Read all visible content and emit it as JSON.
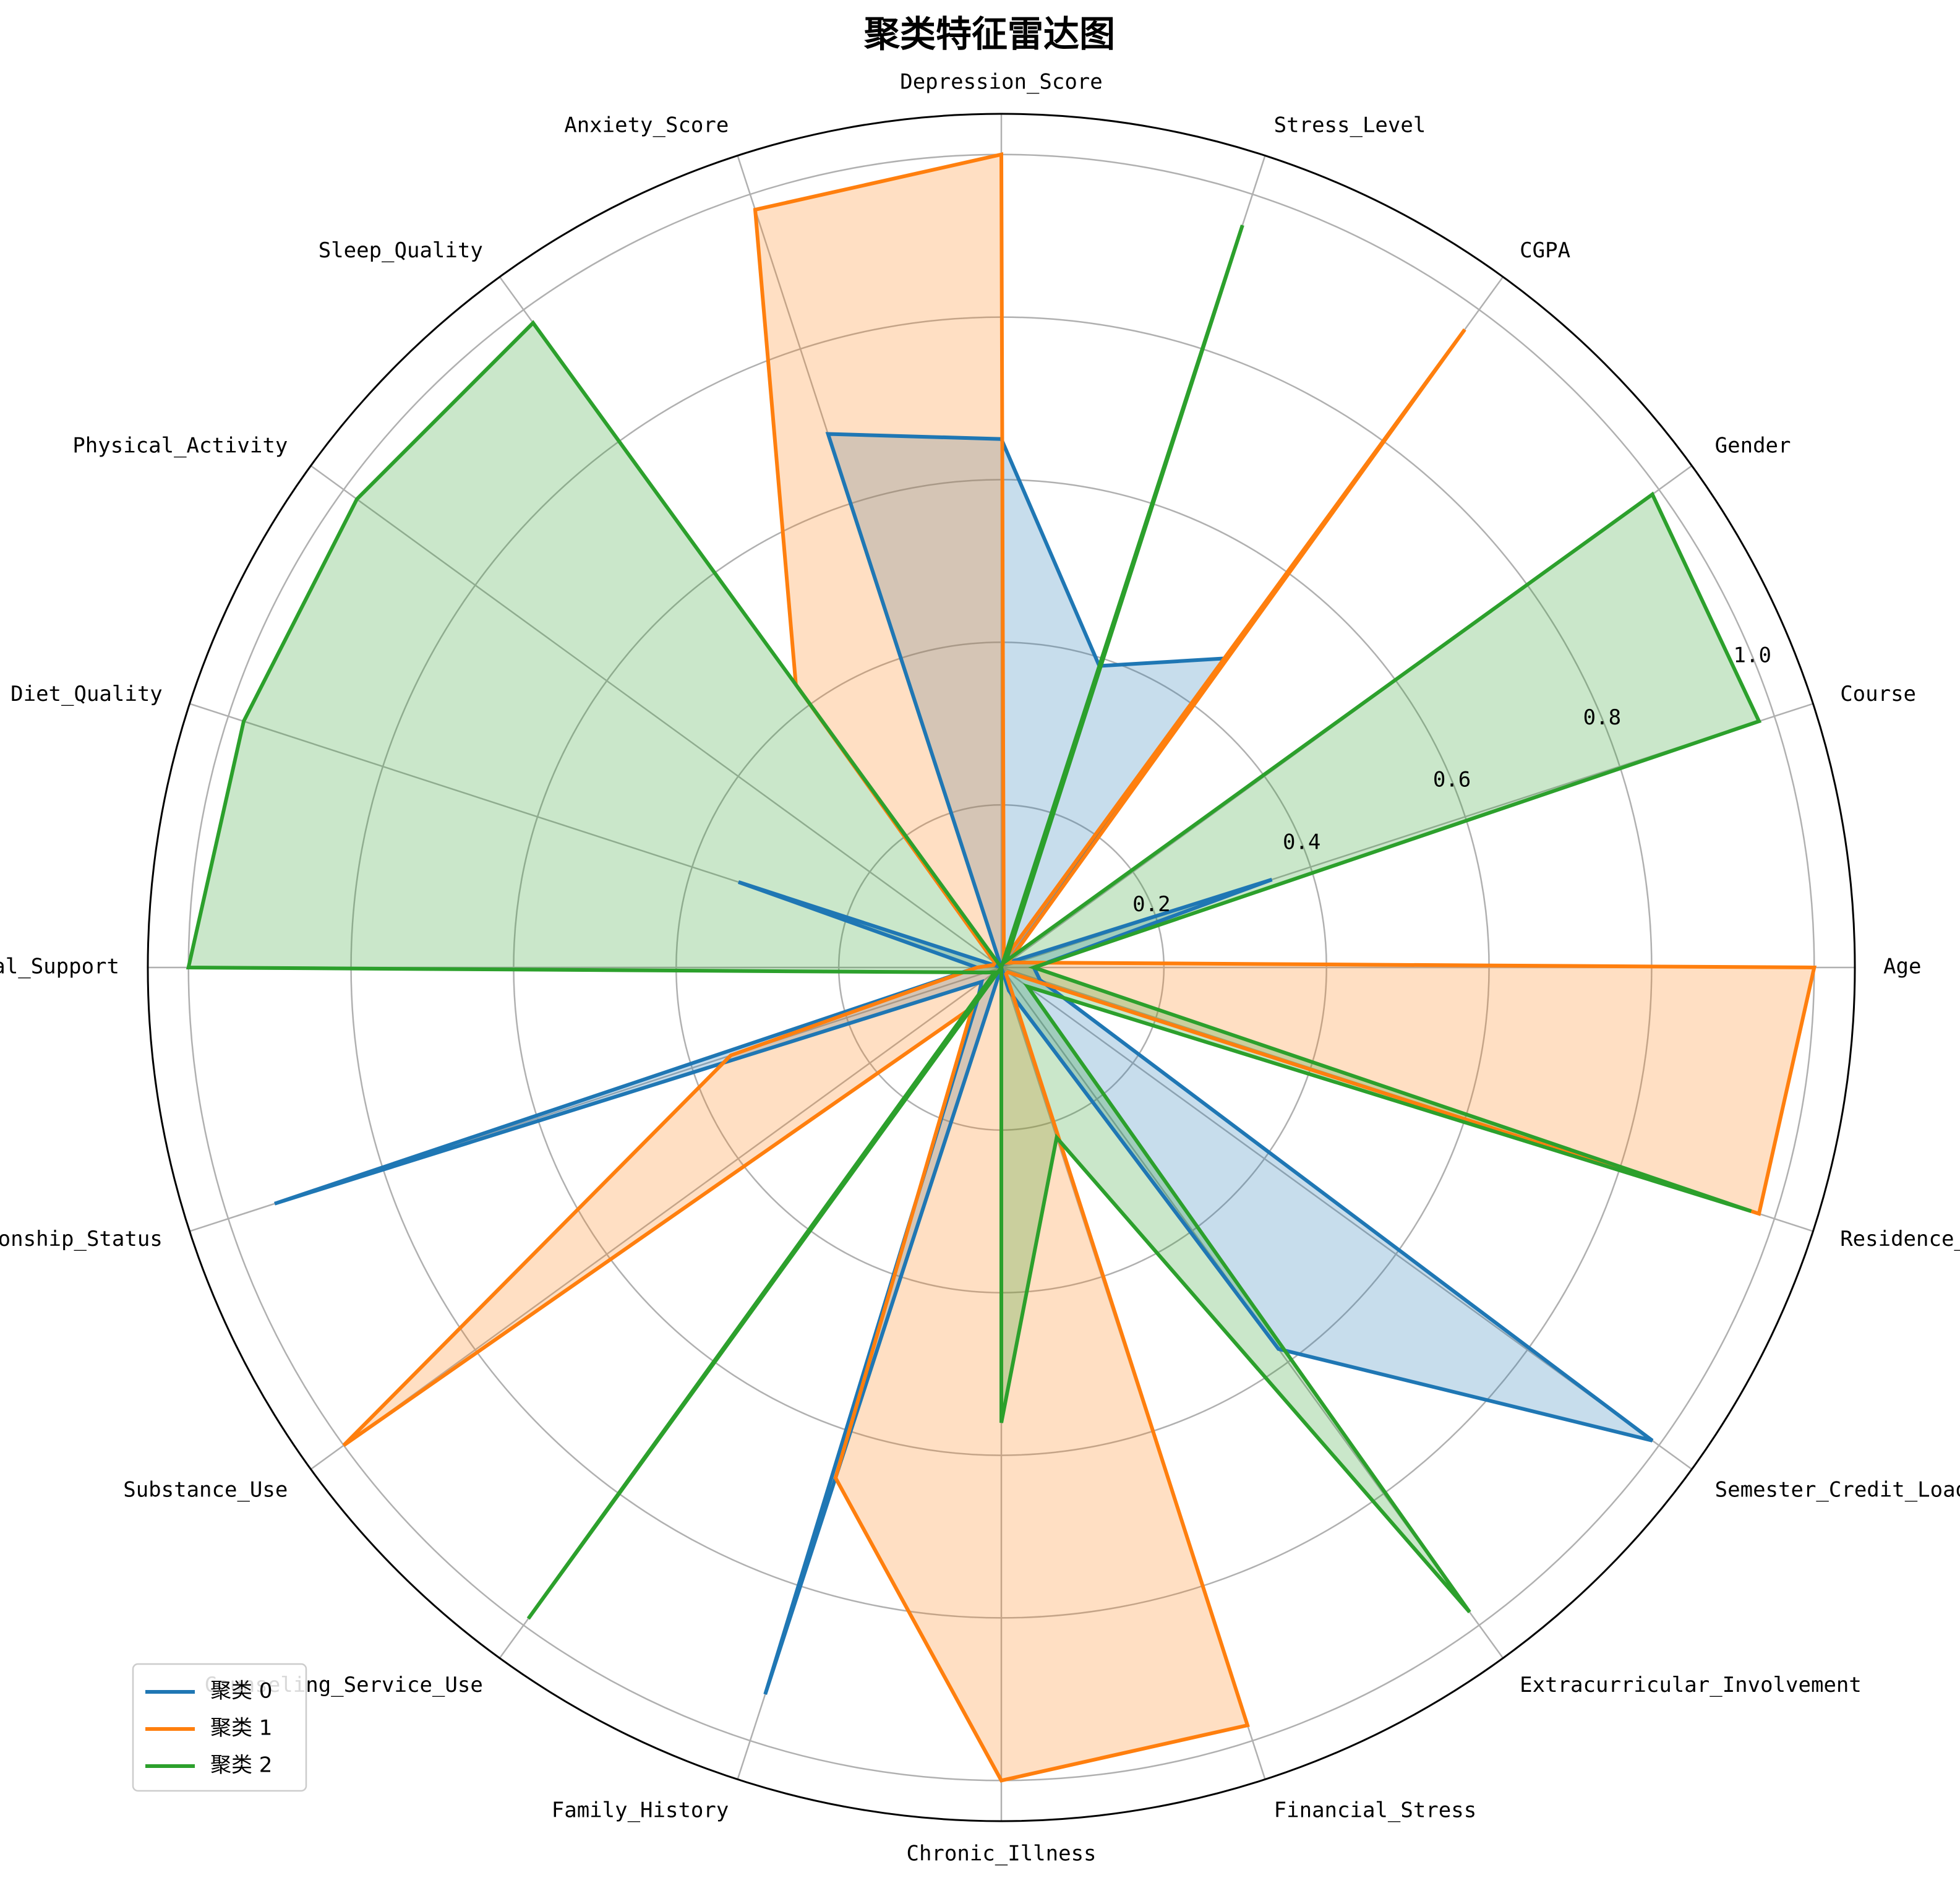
{
  "chart_data": {
    "type": "radar",
    "title": "聚类特征雷达图",
    "categories": [
      "Age",
      "Course",
      "Gender",
      "CGPA",
      "Stress_Level",
      "Depression_Score",
      "Anxiety_Score",
      "Sleep_Quality",
      "Physical_Activity",
      "Diet_Quality",
      "Social_Support",
      "Relationship_Status",
      "Substance_Use",
      "Counseling_Service_Use",
      "Family_History",
      "Chronic_Illness",
      "Financial_Stress",
      "Extracurricular_Involvement",
      "Semester_Credit_Load",
      "Residence_Type"
    ],
    "rlim": [
      0,
      1.05
    ],
    "rticks": [
      0.2,
      0.4,
      0.6,
      0.8,
      1.0
    ],
    "rtick_labels": [
      "0.2",
      "0.4",
      "0.6",
      "0.8",
      "1.0"
    ],
    "grid": true,
    "legend_position": "lower-left",
    "series": [
      {
        "name": "聚类 0",
        "color": "#1f77b4",
        "values": [
          0.04,
          0.35,
          0.01,
          0.47,
          0.39,
          0.65,
          0.69,
          0.0,
          0.0,
          0.34,
          0.03,
          0.94,
          0.03,
          0.05,
          0.94,
          0.0,
          0.03,
          0.58,
          0.99,
          0.05
        ]
      },
      {
        "name": "聚类 1",
        "color": "#ff7f0e",
        "values": [
          1.0,
          0.02,
          0.01,
          0.97,
          0.01,
          1.0,
          0.98,
          0.43,
          0.01,
          0.01,
          0.03,
          0.35,
          1.0,
          0.06,
          0.66,
          1.0,
          0.98,
          0.01,
          0.01,
          0.98
        ]
      },
      {
        "name": "聚类 2",
        "color": "#2ca02c",
        "values": [
          0.04,
          0.98,
          0.99,
          0.01,
          0.96,
          0.0,
          0.0,
          0.98,
          0.98,
          0.98,
          1.0,
          0.02,
          0.01,
          0.99,
          0.0,
          0.56,
          0.22,
          0.98,
          0.04,
          0.97
        ]
      }
    ]
  }
}
